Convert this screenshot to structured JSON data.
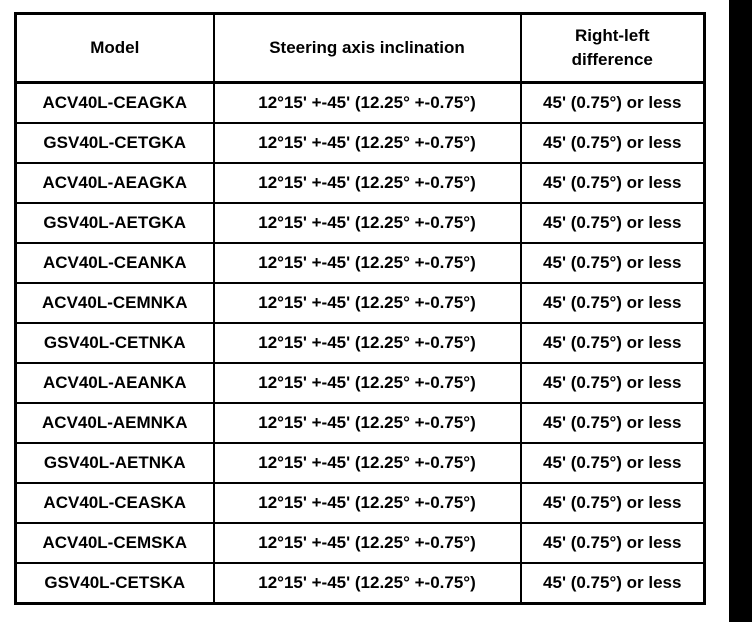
{
  "page": {
    "background_color": "#ffffff",
    "scan_bar_color": "#000000"
  },
  "table": {
    "columns": [
      {
        "label": "Model"
      },
      {
        "label": "Steering axis inclination"
      },
      {
        "label": "Right-left difference"
      }
    ],
    "rows": [
      {
        "model": "ACV40L-CEAGKA",
        "inclination": "12°15' +-45' (12.25° +-0.75°)",
        "difference": "45' (0.75°) or less"
      },
      {
        "model": "GSV40L-CETGKA",
        "inclination": "12°15' +-45' (12.25° +-0.75°)",
        "difference": "45' (0.75°) or less"
      },
      {
        "model": "ACV40L-AEAGKA",
        "inclination": "12°15' +-45' (12.25° +-0.75°)",
        "difference": "45' (0.75°) or less"
      },
      {
        "model": "GSV40L-AETGKA",
        "inclination": "12°15' +-45' (12.25° +-0.75°)",
        "difference": "45' (0.75°) or less"
      },
      {
        "model": "ACV40L-CEANKA",
        "inclination": "12°15' +-45' (12.25° +-0.75°)",
        "difference": "45' (0.75°) or less"
      },
      {
        "model": "ACV40L-CEMNKA",
        "inclination": "12°15' +-45' (12.25° +-0.75°)",
        "difference": "45' (0.75°) or less"
      },
      {
        "model": "GSV40L-CETNKA",
        "inclination": "12°15' +-45' (12.25° +-0.75°)",
        "difference": "45' (0.75°) or less"
      },
      {
        "model": "ACV40L-AEANKA",
        "inclination": "12°15' +-45' (12.25° +-0.75°)",
        "difference": "45' (0.75°) or less"
      },
      {
        "model": "ACV40L-AEMNKA",
        "inclination": "12°15' +-45' (12.25° +-0.75°)",
        "difference": "45' (0.75°) or less"
      },
      {
        "model": "GSV40L-AETNKA",
        "inclination": "12°15' +-45' (12.25° +-0.75°)",
        "difference": "45' (0.75°) or less"
      },
      {
        "model": "ACV40L-CEASKA",
        "inclination": "12°15' +-45' (12.25° +-0.75°)",
        "difference": "45' (0.75°) or less"
      },
      {
        "model": "ACV40L-CEMSKA",
        "inclination": "12°15' +-45' (12.25° +-0.75°)",
        "difference": "45' (0.75°) or less"
      },
      {
        "model": "GSV40L-CETSKA",
        "inclination": "12°15' +-45' (12.25° +-0.75°)",
        "difference": "45' (0.75°) or less"
      }
    ]
  }
}
